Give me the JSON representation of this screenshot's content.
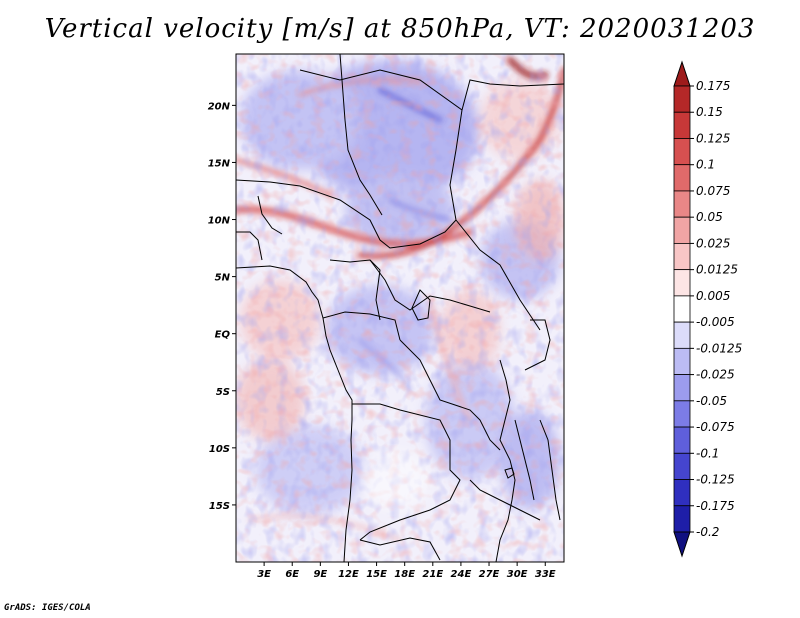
{
  "title": "Vertical velocity [m/s] at 850hPa, VT: 2020031203",
  "credit": "GrADS: IGES/COLA",
  "chart_data": {
    "type": "heatmap",
    "title": "Vertical velocity [m/s] at 850hPa, VT: 2020031203",
    "variable": "Vertical velocity",
    "units": "m/s",
    "level": "850hPa",
    "valid_time": "2020031203",
    "lon_range": [
      0,
      35
    ],
    "lat_range": [
      -20,
      24.5
    ],
    "x_ticks": [
      "3E",
      "6E",
      "9E",
      "12E",
      "15E",
      "18E",
      "21E",
      "24E",
      "27E",
      "30E",
      "33E"
    ],
    "x_tick_values": [
      3,
      6,
      9,
      12,
      15,
      18,
      21,
      24,
      27,
      30,
      33
    ],
    "y_ticks": [
      "20N",
      "15N",
      "10N",
      "5N",
      "EQ",
      "5S",
      "10S",
      "15S"
    ],
    "y_tick_values": [
      20,
      15,
      10,
      5,
      0,
      -5,
      -10,
      -15
    ],
    "colorbar": {
      "levels": [
        "0.175",
        "0.15",
        "0.125",
        "0.1",
        "0.075",
        "0.05",
        "0.025",
        "0.0125",
        "0.005",
        "-0.005",
        "-0.0125",
        "-0.025",
        "-0.05",
        "-0.075",
        "-0.1",
        "-0.125",
        "-0.175",
        "-0.2"
      ],
      "colors": [
        "#9e1b1b",
        "#b42828",
        "#c73838",
        "#d65050",
        "#e06a6a",
        "#e98787",
        "#f1a5a5",
        "#f8c6c6",
        "#fde5e5",
        "#ffffff",
        "#dcdcfa",
        "#bcbcf4",
        "#9c9cee",
        "#7c7ce6",
        "#5f5fdb",
        "#4545cf",
        "#2f2fbf",
        "#1e1ea8",
        "#101080"
      ]
    }
  }
}
